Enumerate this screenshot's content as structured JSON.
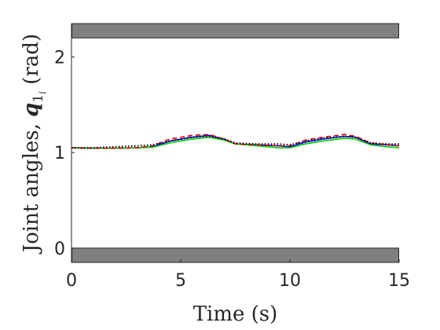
{
  "chart_data": {
    "type": "line",
    "xlabel": "Time (s)",
    "ylabel_prefix": "Joint angles, ",
    "ylabel_symbol": "q",
    "ylabel_subscript": "1",
    "ylabel_subsubscript": "i",
    "ylabel_suffix": " (rad)",
    "xlim": [
      0,
      15
    ],
    "ylim": [
      -0.15,
      2.35
    ],
    "xticks": [
      0,
      5,
      10,
      15
    ],
    "xtick_labels": [
      "0",
      "5",
      "10",
      "15"
    ],
    "yticks": [
      0,
      1,
      2
    ],
    "ytick_labels": [
      "0",
      "1",
      "2"
    ],
    "grid": false,
    "shaded_bands": [
      {
        "y_from": 2.2,
        "y_to": 2.35,
        "color": "#808080"
      },
      {
        "y_from": -0.15,
        "y_to": 0.0,
        "color": "#808080"
      }
    ],
    "series": [
      {
        "color": "#0000ff",
        "style": "solid",
        "x": [
          0,
          1,
          2,
          3,
          3.7,
          4.5,
          5.5,
          6.3,
          7,
          7.5,
          8.5,
          9.5,
          10,
          10.7,
          11.5,
          12.5,
          13,
          13.7,
          14.5,
          15
        ],
        "y": [
          1.05,
          1.045,
          1.045,
          1.05,
          1.06,
          1.12,
          1.16,
          1.18,
          1.14,
          1.09,
          1.08,
          1.07,
          1.06,
          1.11,
          1.14,
          1.17,
          1.16,
          1.09,
          1.08,
          1.07
        ]
      },
      {
        "color": "#00cc00",
        "style": "solid",
        "x": [
          0,
          1,
          2,
          3,
          3.7,
          4.5,
          5.5,
          6.3,
          7,
          7.5,
          8.5,
          9.5,
          10,
          10.7,
          11.5,
          12.5,
          13,
          13.7,
          14.5,
          15
        ],
        "y": [
          1.05,
          1.045,
          1.045,
          1.05,
          1.055,
          1.1,
          1.14,
          1.16,
          1.13,
          1.09,
          1.07,
          1.05,
          1.05,
          1.09,
          1.12,
          1.15,
          1.14,
          1.08,
          1.06,
          1.05
        ]
      },
      {
        "color": "#dd0000",
        "style": "dashed",
        "x": [
          0,
          1,
          2,
          3,
          3.7,
          4.5,
          5.5,
          6.3,
          7,
          7.5,
          8.5,
          9.5,
          10,
          10.7,
          11.5,
          12.5,
          13,
          13.7,
          14.5,
          15
        ],
        "y": [
          1.05,
          1.045,
          1.045,
          1.05,
          1.07,
          1.14,
          1.18,
          1.19,
          1.14,
          1.09,
          1.08,
          1.07,
          1.07,
          1.13,
          1.16,
          1.19,
          1.17,
          1.1,
          1.08,
          1.07
        ]
      },
      {
        "color": "#000000",
        "style": "dotted",
        "x": [
          0,
          1,
          2,
          3,
          3.7,
          4.5,
          5.5,
          6.3,
          7,
          7.5,
          8.5,
          9.5,
          10,
          10.7,
          11.5,
          12.5,
          13,
          13.7,
          14.5,
          15
        ],
        "y": [
          1.05,
          1.05,
          1.06,
          1.07,
          1.08,
          1.12,
          1.16,
          1.17,
          1.14,
          1.1,
          1.09,
          1.09,
          1.08,
          1.12,
          1.15,
          1.17,
          1.16,
          1.1,
          1.09,
          1.09
        ]
      }
    ]
  }
}
